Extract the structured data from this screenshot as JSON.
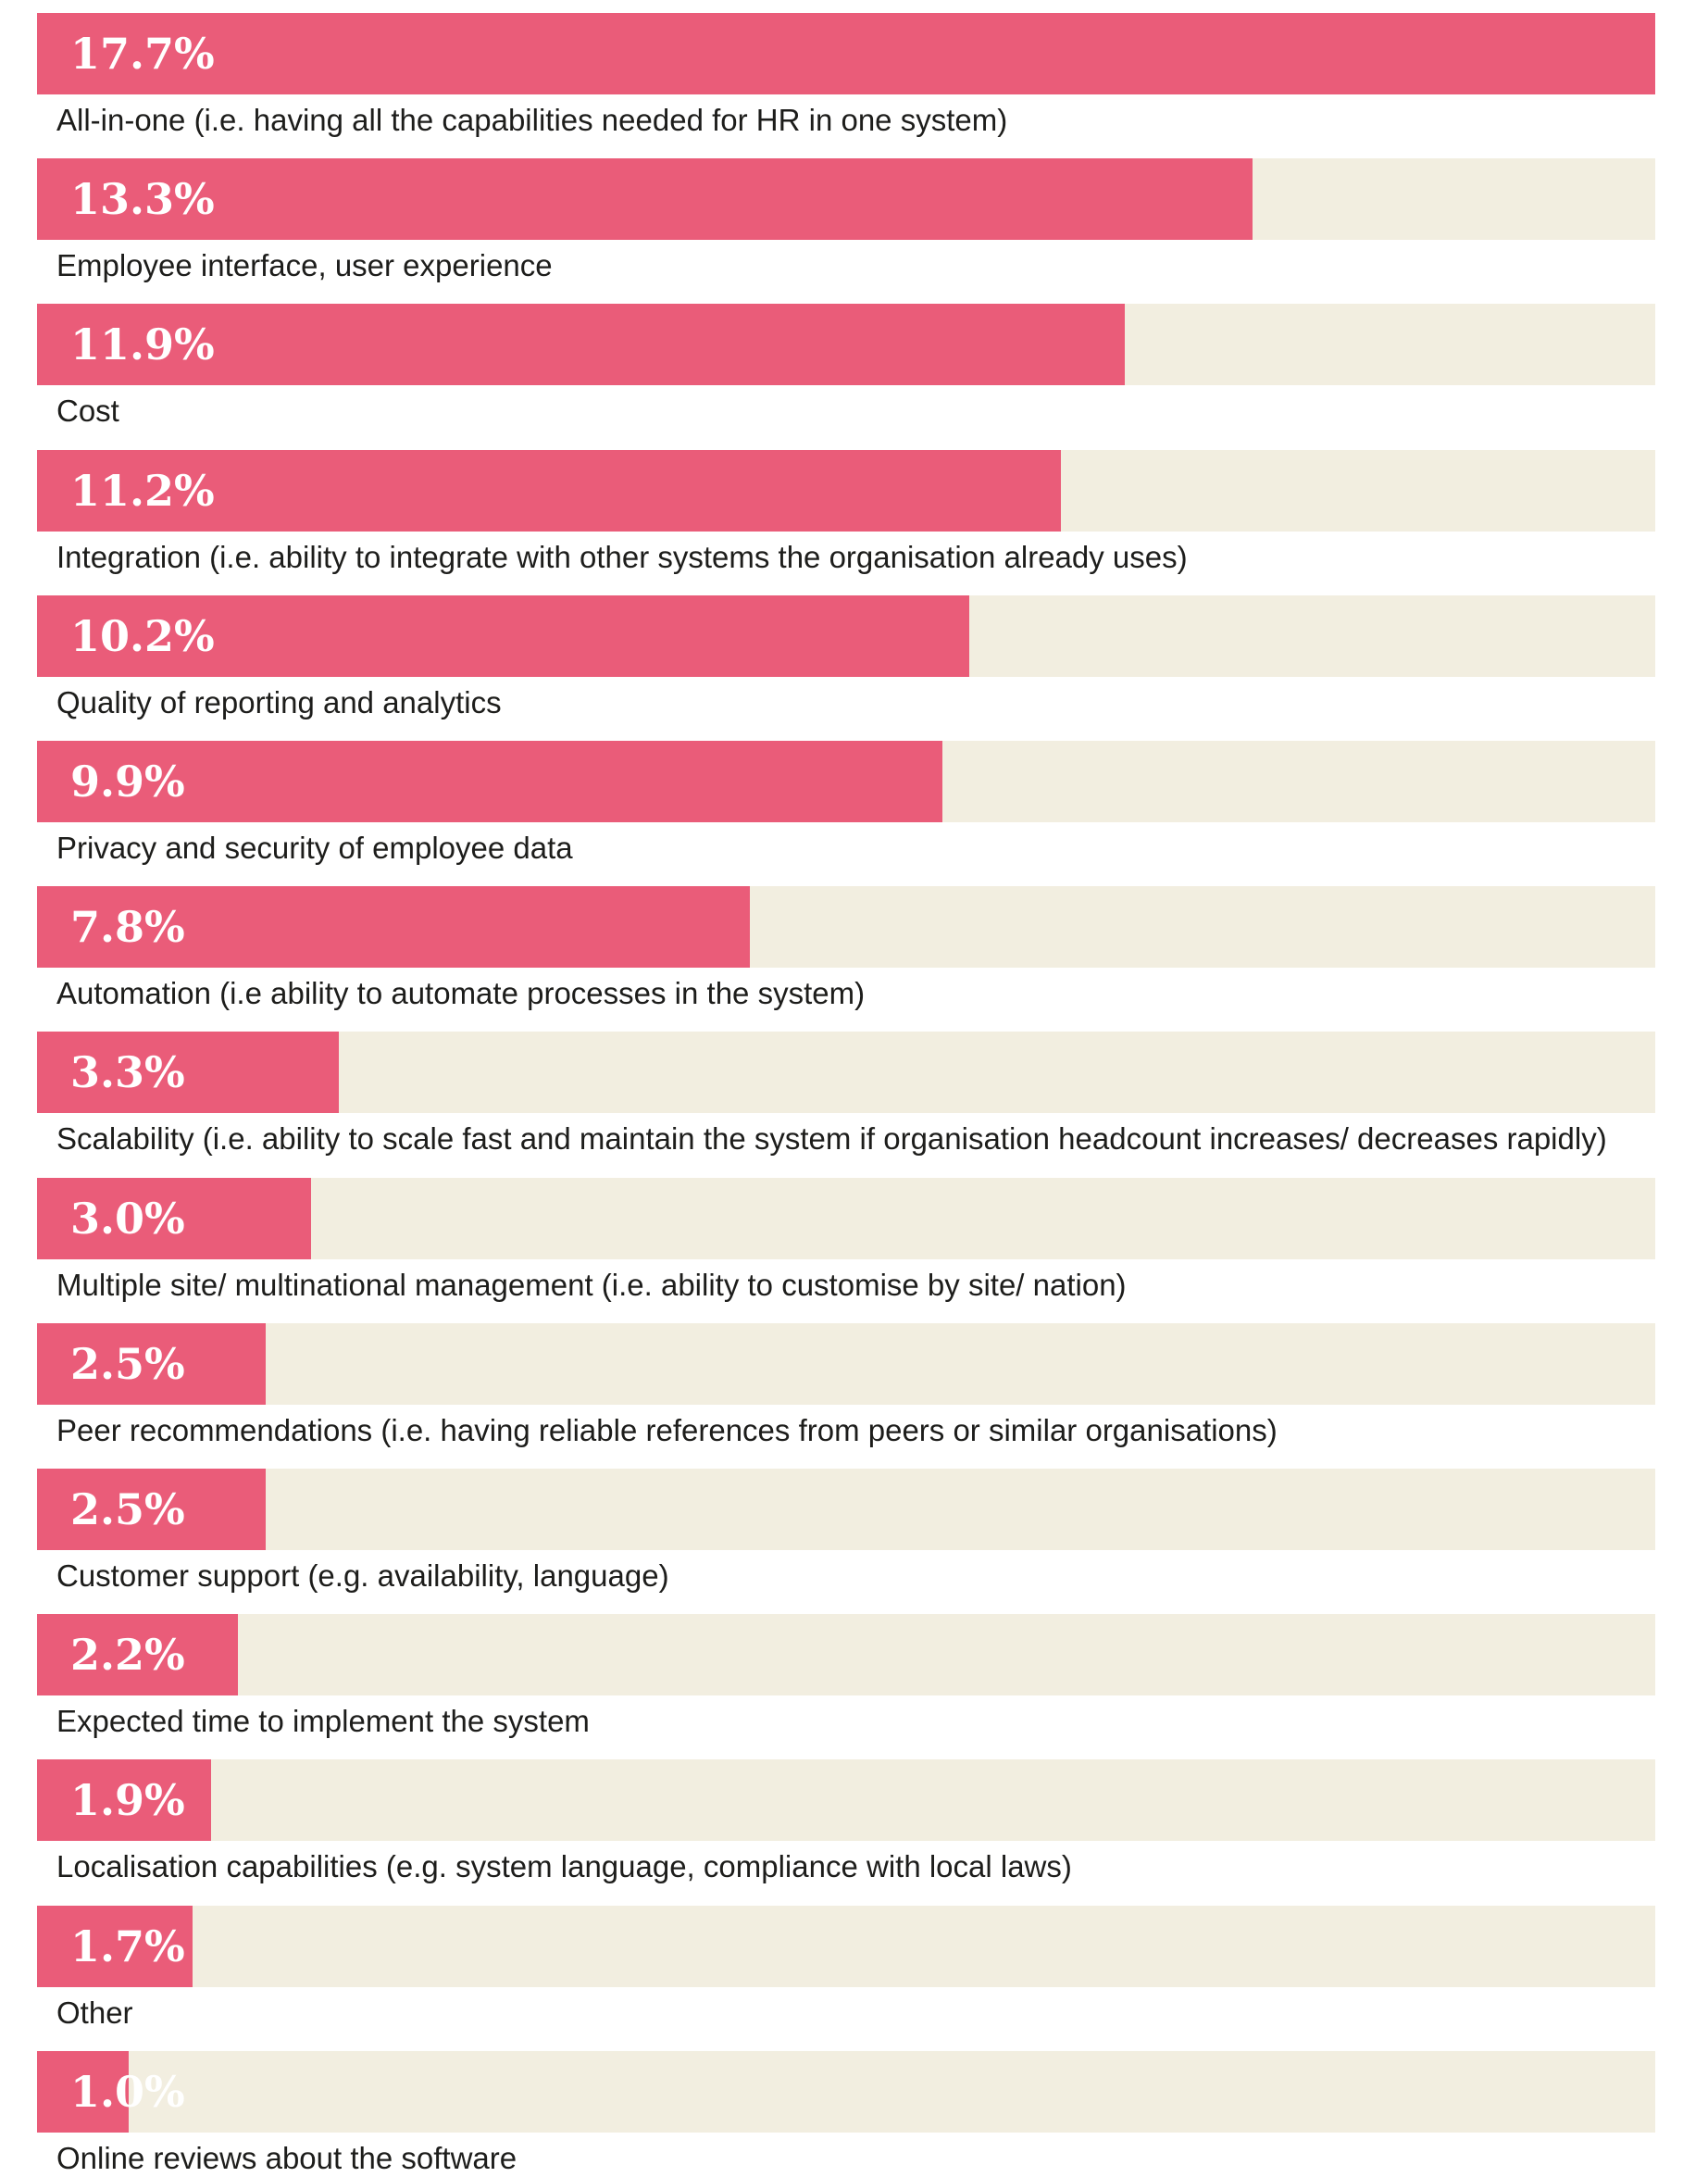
{
  "colors": {
    "bar_fill": "#ea5c79",
    "bar_track": "#f2eee0",
    "value_text": "#ffffff",
    "label_text": "#1d1d1b"
  },
  "chart_data": {
    "type": "bar",
    "orientation": "horizontal",
    "title": "",
    "xlabel": "",
    "ylabel": "",
    "xlim": [
      0,
      17.7
    ],
    "grid": false,
    "legend": "none",
    "categories": [
      "All-in-one (i.e. having all the capabilities needed for HR in one system)",
      "Employee interface, user experience",
      "Cost",
      "Integration (i.e. ability to integrate with other systems the organisation already uses)",
      "Quality of reporting and analytics",
      "Privacy and security of employee data",
      "Automation (i.e ability to automate processes in the system)",
      "Scalability (i.e. ability to scale fast and maintain the system if organisation headcount increases/ decreases rapidly)",
      "Multiple site/ multinational management (i.e. ability to customise by site/ nation)",
      "Peer recommendations (i.e. having reliable references from peers or similar organisations)",
      "Customer support (e.g. availability, language)",
      "Expected time to implement the system",
      "Localisation capabilities (e.g. system language, compliance with local laws)",
      "Other",
      "Online reviews about the software"
    ],
    "values": [
      17.7,
      13.3,
      11.9,
      11.2,
      10.2,
      9.9,
      7.8,
      3.3,
      3.0,
      2.5,
      2.5,
      2.2,
      1.9,
      1.7,
      1.0
    ],
    "value_labels": [
      "17.7%",
      "13.3%",
      "11.9%",
      "11.2%",
      "10.2%",
      "9.9%",
      "7.8%",
      "3.3%",
      "3.0%",
      "2.5%",
      "2.5%",
      "2.2%",
      "1.9%",
      "1.7%",
      "1.0%"
    ]
  }
}
